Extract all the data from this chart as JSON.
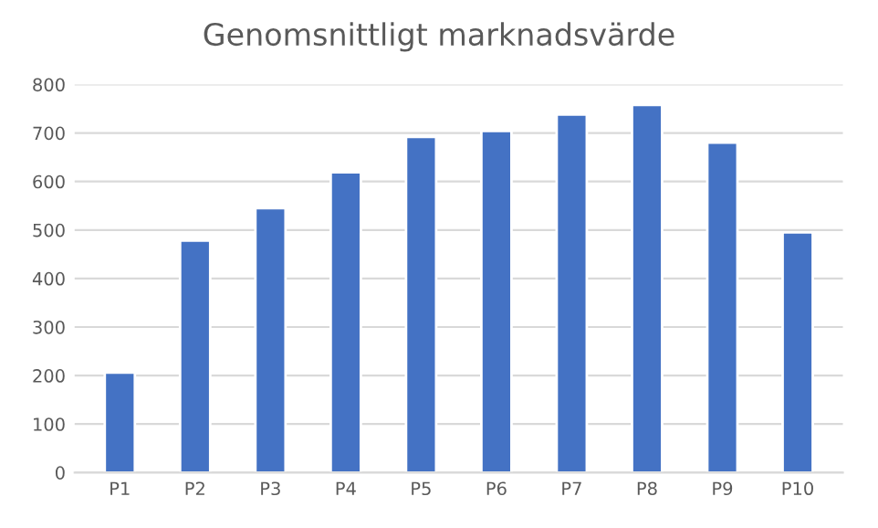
{
  "chart_data": {
    "type": "bar",
    "title": "Genomsnittligt marknadsvärde",
    "categories": [
      "P1",
      "P2",
      "P3",
      "P4",
      "P5",
      "P6",
      "P7",
      "P8",
      "P9",
      "P10"
    ],
    "values": [
      206,
      478,
      545,
      619,
      692,
      704,
      738,
      758,
      680,
      495
    ],
    "color": "#4472c4",
    "ylim": [
      0,
      800
    ],
    "yticks": [
      0,
      100,
      200,
      300,
      400,
      500,
      600,
      700,
      800
    ],
    "grid": "y"
  }
}
